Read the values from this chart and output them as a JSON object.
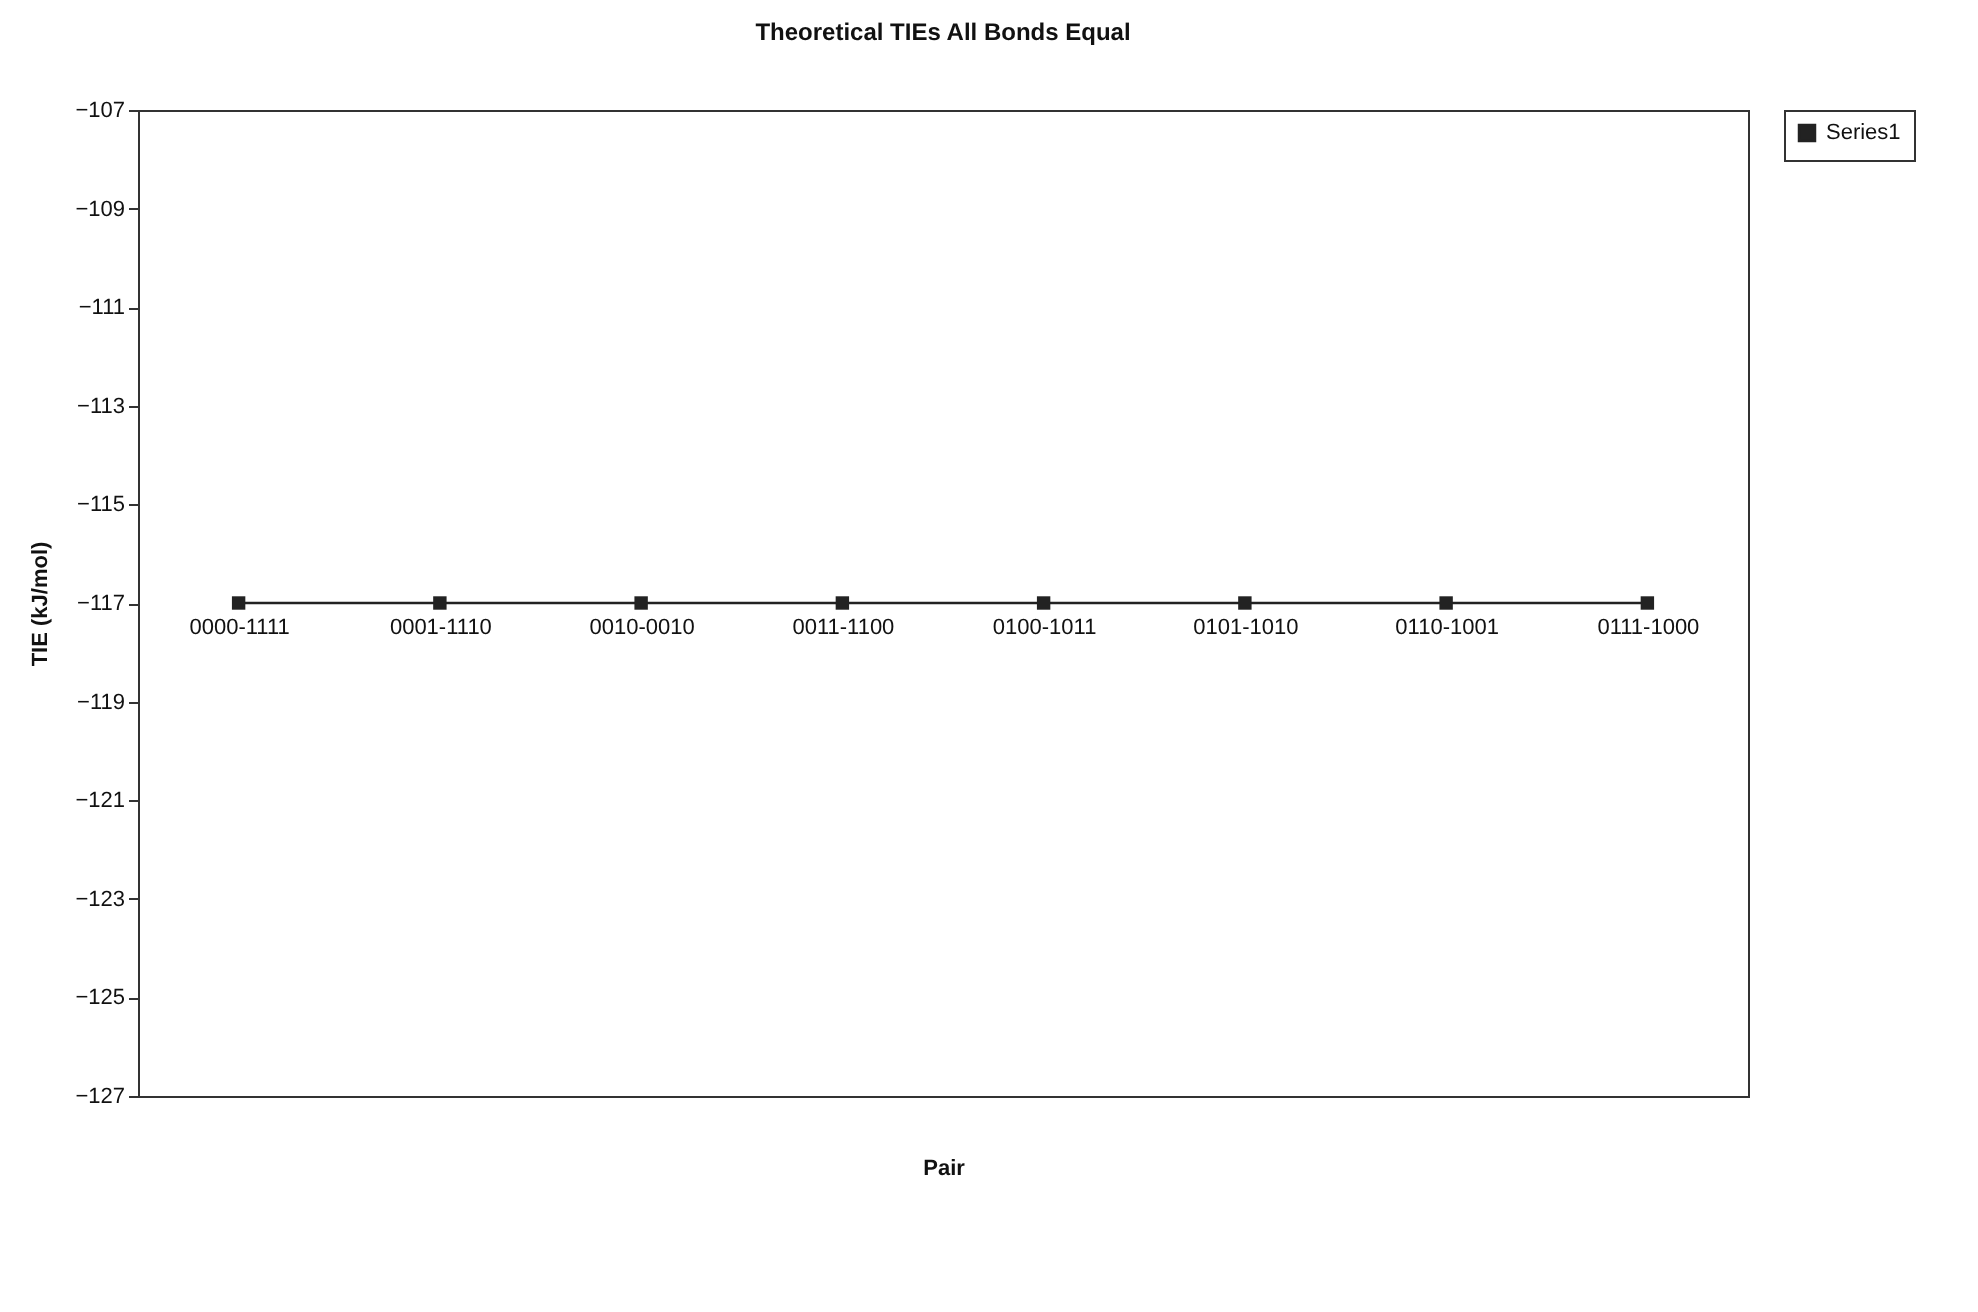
{
  "chart_data": {
    "type": "line",
    "title": "Theoretical TIEs All Bonds Equal",
    "xlabel": "Pair",
    "ylabel": "TIE (kJ/mol)",
    "categories": [
      "0000-1111",
      "0001-1110",
      "0010-0010",
      "0011-1100",
      "0100-1011",
      "0101-1010",
      "0110-1001",
      "0111-1000"
    ],
    "series": [
      {
        "name": "Series1",
        "color": "#222222",
        "values": [
          -117,
          -117,
          -117,
          -117,
          -117,
          -117,
          -117,
          -117
        ]
      }
    ],
    "ylim": [
      -127,
      -107
    ],
    "yticks": [
      -107,
      -109,
      -111,
      -113,
      -115,
      -117,
      -119,
      -121,
      -123,
      -125,
      -127
    ],
    "marker": "square",
    "legend": "right",
    "grid": false
  }
}
